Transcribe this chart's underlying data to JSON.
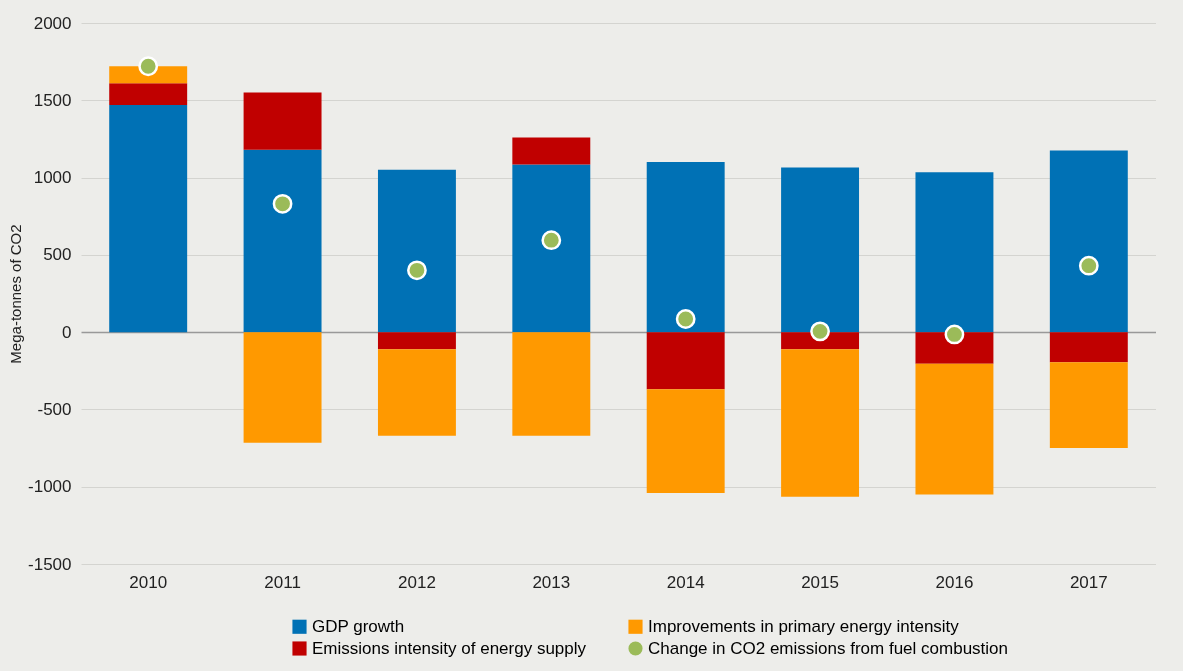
{
  "chart_data": {
    "type": "bar",
    "stacked": true,
    "categories": [
      "2010",
      "2011",
      "2012",
      "2013",
      "2014",
      "2015",
      "2016",
      "2017"
    ],
    "ylabel": "Mega-tonnes of CO2",
    "ylim": [
      -1500,
      2000
    ],
    "yticks": [
      -1500,
      -1000,
      -500,
      0,
      500,
      1000,
      1500,
      2000
    ],
    "grid": "y",
    "legend": "bottom",
    "series": [
      {
        "name": "GDP growth",
        "color": "#0071b5",
        "values": [
          1470,
          1180,
          1050,
          1085,
          1100,
          1065,
          1035,
          1175
        ]
      },
      {
        "name": "Emissions intensity of energy supply",
        "color": "#c00000",
        "values": [
          140,
          370,
          -110,
          175,
          -370,
          -110,
          -205,
          -195
        ]
      },
      {
        "name": "Improvements in primary energy intensity",
        "color": "#ff9900",
        "values": [
          110,
          -715,
          -560,
          -670,
          -670,
          -955,
          -845,
          -555
        ]
      },
      {
        "name": "Change in CO2 emissions from fuel combustion",
        "type": "scatter",
        "marker": "circle",
        "color": "#9bbb59",
        "values": [
          1720,
          830,
          400,
          595,
          85,
          5,
          -15,
          430
        ]
      }
    ]
  }
}
